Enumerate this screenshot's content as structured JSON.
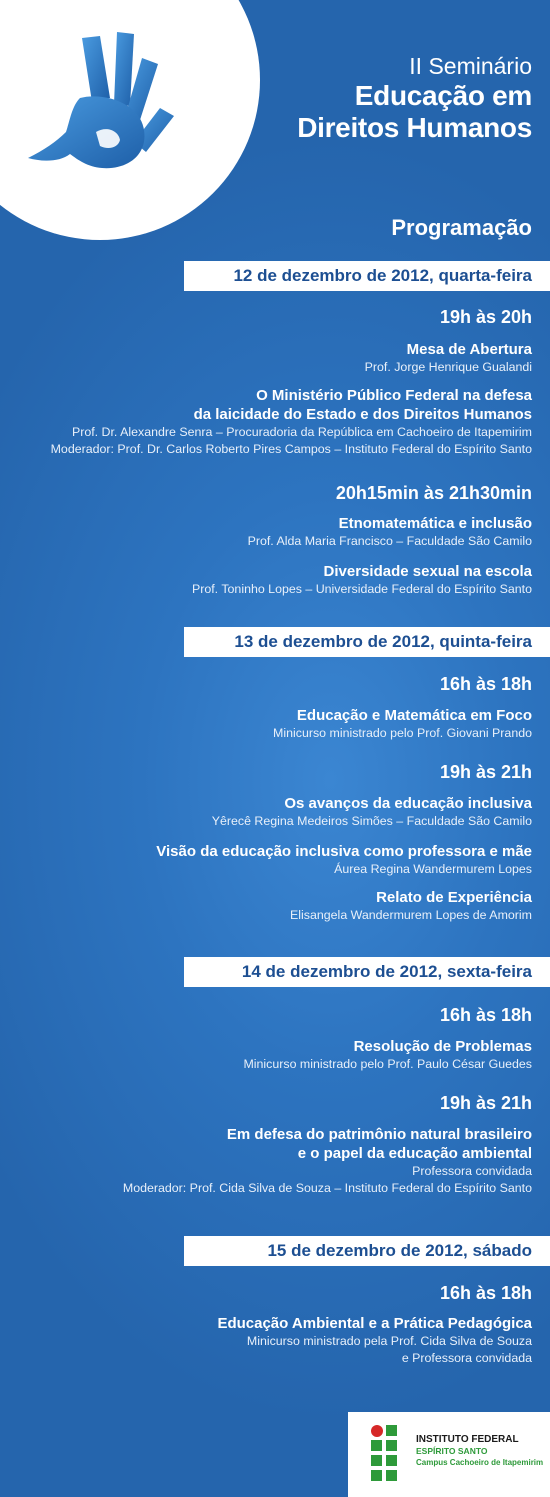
{
  "header": {
    "superscript": "II Seminário",
    "title_line1": "Educação em",
    "title_line2": "Direitos Humanos"
  },
  "section_title": "Programação",
  "days": [
    {
      "date": "12 de dezembro de 2012, quarta-feira",
      "times": [
        {
          "time": "19h às 20h",
          "events": [
            {
              "title": [
                "Mesa de Abertura"
              ],
              "details": [
                "Prof. Jorge Henrique Gualandi"
              ]
            },
            {
              "title": [
                "O Ministério Público Federal na defesa",
                "da laicidade do Estado e dos Direitos Humanos"
              ],
              "details": [
                "Prof. Dr. Alexandre Senra – Procuradoria da República em Cachoeiro de Itapemirim",
                "Moderador: Prof. Dr. Carlos Roberto Pires Campos – Instituto Federal do Espírito Santo"
              ]
            }
          ]
        },
        {
          "time": "20h15min às 21h30min",
          "events": [
            {
              "title": [
                "Etnomatemática e inclusão"
              ],
              "details": [
                "Prof. Alda Maria Francisco – Faculdade São Camilo"
              ]
            },
            {
              "title": [
                "Diversidade sexual na escola"
              ],
              "details": [
                "Prof. Toninho Lopes – Universidade Federal do Espírito Santo"
              ]
            }
          ]
        }
      ]
    },
    {
      "date": "13 de dezembro de 2012, quinta-feira",
      "times": [
        {
          "time": "16h às 18h",
          "events": [
            {
              "title": [
                "Educação e Matemática em Foco"
              ],
              "details": [
                "Minicurso ministrado pelo Prof. Giovani Prando"
              ]
            }
          ]
        },
        {
          "time": "19h às 21h",
          "events": [
            {
              "title": [
                "Os avanços da educação inclusiva"
              ],
              "details": [
                "Yêrecê Regina Medeiros Simões – Faculdade São Camilo"
              ]
            },
            {
              "title": [
                "Visão da educação inclusiva como professora e mãe"
              ],
              "details": [
                "Áurea Regina Wandermurem Lopes"
              ]
            },
            {
              "title": [
                "Relato de Experiência"
              ],
              "details": [
                "Elisangela Wandermurem Lopes de Amorim"
              ]
            }
          ]
        }
      ]
    },
    {
      "date": "14 de dezembro de 2012, sexta-feira",
      "times": [
        {
          "time": "16h às 18h",
          "events": [
            {
              "title": [
                "Resolução de Problemas"
              ],
              "details": [
                "Minicurso ministrado pelo Prof. Paulo César Guedes"
              ]
            }
          ]
        },
        {
          "time": "19h às 21h",
          "events": [
            {
              "title": [
                "Em defesa do patrimônio natural brasileiro",
                "e o papel da educação ambiental"
              ],
              "details": [
                "Professora convidada",
                "Moderador: Prof. Cida Silva de Souza – Instituto Federal do Espírito Santo"
              ]
            }
          ]
        }
      ]
    },
    {
      "date": "15 de dezembro de 2012, sábado",
      "times": [
        {
          "time": "16h às 18h",
          "events": [
            {
              "title": [
                "Educação Ambiental e a Prática Pedagógica"
              ],
              "details": [
                "Minicurso ministrado pela Prof. Cida Silva de Souza",
                "e Professora convidada"
              ]
            }
          ]
        }
      ]
    }
  ],
  "logo": {
    "line1": "INSTITUTO FEDERAL",
    "line2": "ESPÍRITO SANTO",
    "line3": "Campus Cachoeiro de Itapemirim"
  },
  "colors": {
    "background": "#2a6fba",
    "date_bar_text": "#1d4f92",
    "logo_green": "#2e9a3a",
    "logo_red": "#d62828"
  },
  "icons": {
    "hand": "human-rights-hand-dove-icon",
    "logo": "if-logo-icon"
  }
}
